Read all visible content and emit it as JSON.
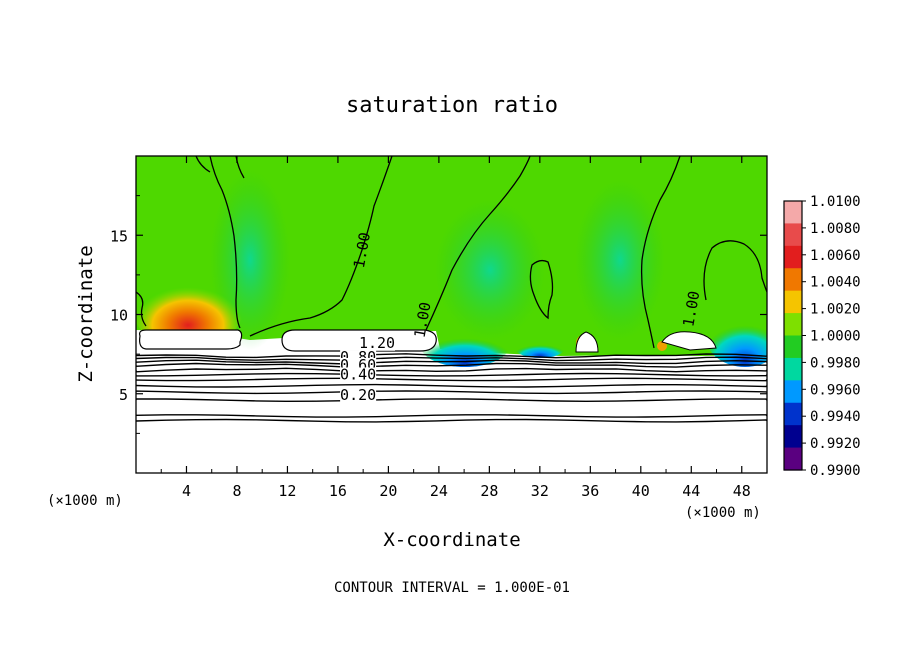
{
  "chart_data": {
    "type": "heatmap",
    "title": "saturation ratio",
    "xlabel": "X-coordinate",
    "ylabel": "Z-coordinate",
    "x_unit_left": "(×1000 m)",
    "x_unit_right": "(×1000 m)",
    "xlim": [
      0,
      50
    ],
    "ylim": [
      0,
      20
    ],
    "xticks": [
      4,
      8,
      12,
      16,
      20,
      24,
      28,
      32,
      36,
      40,
      44,
      48
    ],
    "yticks": [
      5,
      10,
      15
    ],
    "footer": "CONTOUR INTERVAL = 1.000E-01",
    "colorbar": {
      "ticks": [
        "1.0100",
        "1.0080",
        "1.0060",
        "1.0040",
        "1.0020",
        "1.0000",
        "0.9980",
        "0.9960",
        "0.9940",
        "0.9920",
        "0.9900"
      ],
      "colors": [
        "#f4a9a9",
        "#e84b4b",
        "#e21e1e",
        "#f07800",
        "#f5c400",
        "#7ee000",
        "#22cc22",
        "#00d8a0",
        "#0099ff",
        "#0033cc",
        "#00008f",
        "#5a0080"
      ]
    },
    "contour_labels": [
      {
        "text": "1.20",
        "x": 19.1,
        "y": 7.9
      },
      {
        "text": "0.80",
        "x": 17.6,
        "y": 7.0
      },
      {
        "text": "0.60",
        "x": 17.6,
        "y": 6.5
      },
      {
        "text": "0.40",
        "x": 17.6,
        "y": 5.9
      },
      {
        "text": "0.20",
        "x": 17.6,
        "y": 4.6
      },
      {
        "text": "1.00",
        "x": 18.3,
        "y": 14.0
      },
      {
        "text": "1.00",
        "x": 23.1,
        "y": 9.6
      },
      {
        "text": "1.00",
        "x": 44.4,
        "y": 10.3
      }
    ],
    "low_contour_levels_z": [
      3.3,
      3.6,
      4.6,
      5.1,
      5.5,
      5.9,
      6.2,
      6.5,
      6.8,
      7.0,
      7.2,
      7.4
    ]
  }
}
